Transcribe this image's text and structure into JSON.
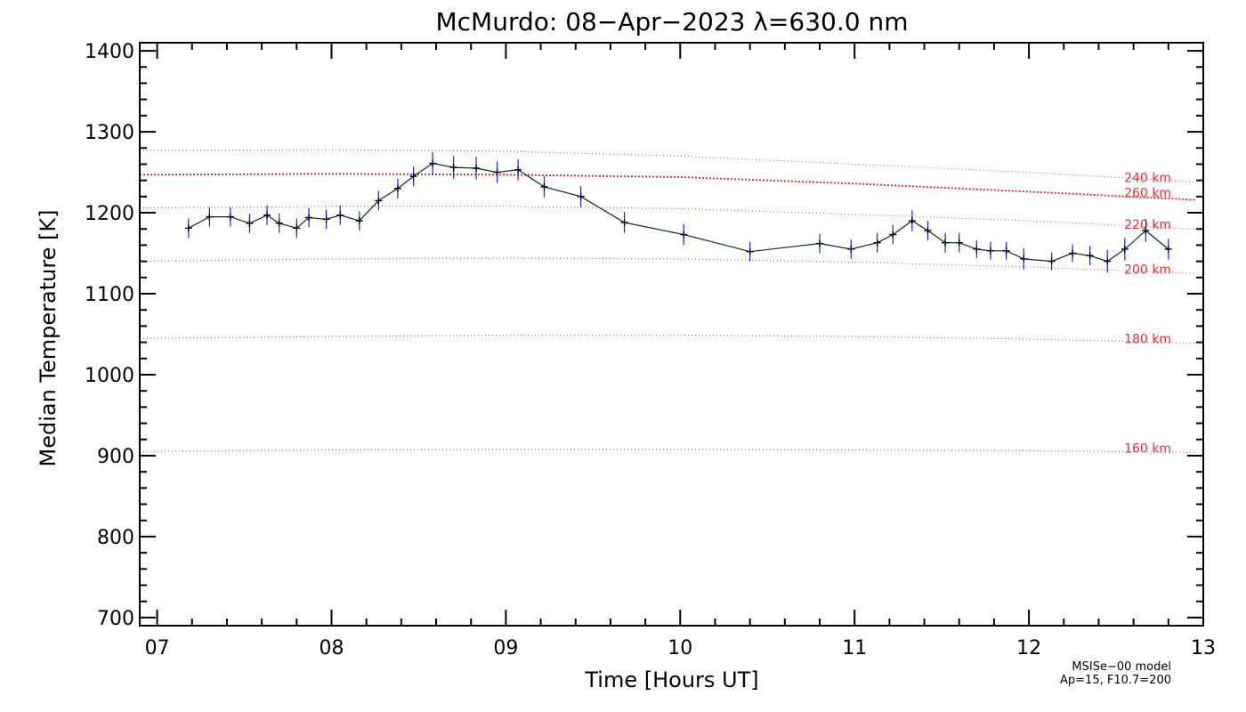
{
  "chart_data": {
    "type": "line",
    "title": "McMurdo: 08−Apr−2023 λ=630.0 nm",
    "xlabel": "Time [Hours UT]",
    "ylabel": "Median Temperature [K]",
    "xlim": [
      6.9,
      13.0
    ],
    "ylim": [
      690,
      1410
    ],
    "xticks": [
      7,
      8,
      9,
      10,
      11,
      12,
      13
    ],
    "xtick_labels": [
      "07",
      "08",
      "09",
      "10",
      "11",
      "12",
      "13"
    ],
    "yticks": [
      700,
      800,
      900,
      1000,
      1100,
      1200,
      1300,
      1400
    ],
    "ytick_labels": [
      "700",
      "800",
      "900",
      "1000",
      "1100",
      "1200",
      "1300",
      "1400"
    ],
    "grid": false,
    "colors": {
      "series": "#003030",
      "error_bars": "#2020ff",
      "model": "#e0303a"
    },
    "series": [
      {
        "x": [
          7.18,
          7.3,
          7.42,
          7.53,
          7.63,
          7.7,
          7.8,
          7.87,
          7.97,
          8.05,
          8.16,
          8.27,
          8.38,
          8.47,
          8.58,
          8.7,
          8.83,
          8.95,
          9.07,
          9.22,
          9.43,
          9.68,
          10.02,
          10.4,
          10.8,
          10.98,
          11.13,
          11.22,
          11.33,
          11.42,
          11.52,
          11.6,
          11.7,
          11.78,
          11.87,
          11.97,
          12.13,
          12.25,
          12.35,
          12.45,
          12.55,
          12.67,
          12.8
        ],
        "y": [
          1181,
          1195,
          1195,
          1187,
          1197,
          1187,
          1181,
          1194,
          1192,
          1197,
          1190,
          1215,
          1230,
          1245,
          1261,
          1256,
          1255,
          1250,
          1253,
          1232,
          1220,
          1188,
          1173,
          1152,
          1162,
          1155,
          1163,
          1173,
          1190,
          1178,
          1163,
          1163,
          1155,
          1153,
          1153,
          1143,
          1140,
          1150,
          1147,
          1140,
          1155,
          1178,
          1155
        ],
        "yerr": [
          12,
          12,
          12,
          12,
          12,
          12,
          12,
          12,
          12,
          12,
          12,
          12,
          12,
          12,
          14,
          14,
          14,
          13,
          13,
          13,
          13,
          13,
          13,
          12,
          12,
          12,
          12,
          12,
          13,
          12,
          12,
          12,
          11,
          11,
          11,
          13,
          11,
          11,
          12,
          14,
          14,
          14,
          13
        ]
      }
    ],
    "model_lines": [
      {
        "label": "260 km",
        "x": [
          6.9,
          8.0,
          9.0,
          10.0,
          11.0,
          12.0,
          12.95
        ],
        "y": [
          1247,
          1248,
          1247,
          1244,
          1236,
          1226,
          1216
        ],
        "dense": true
      },
      {
        "label": "240 km",
        "x": [
          6.9,
          8.0,
          9.0,
          10.0,
          11.0,
          12.0,
          12.95
        ],
        "y": [
          1277,
          1278,
          1276,
          1270,
          1260,
          1250,
          1238
        ]
      },
      {
        "label": "220 km",
        "x": [
          6.9,
          8.0,
          9.0,
          10.0,
          11.0,
          12.0,
          12.95
        ],
        "y": [
          1206,
          1208,
          1208,
          1205,
          1198,
          1190,
          1180
        ]
      },
      {
        "label": "200 km",
        "x": [
          6.9,
          8.0,
          9.0,
          10.0,
          11.0,
          12.0,
          12.95
        ],
        "y": [
          1140,
          1143,
          1144,
          1143,
          1139,
          1133,
          1125
        ]
      },
      {
        "label": "180 km",
        "x": [
          6.9,
          8.0,
          9.0,
          10.0,
          11.0,
          12.0,
          12.95
        ],
        "y": [
          1045,
          1047,
          1049,
          1049,
          1047,
          1044,
          1039
        ]
      },
      {
        "label": "160 km",
        "x": [
          6.9,
          8.0,
          9.0,
          10.0,
          11.0,
          12.0,
          12.95
        ],
        "y": [
          905,
          907,
          908,
          908,
          907,
          906,
          904
        ]
      }
    ],
    "model_note": [
      "MSISe−00 model",
      "Ap=15, F10.7=200"
    ]
  }
}
